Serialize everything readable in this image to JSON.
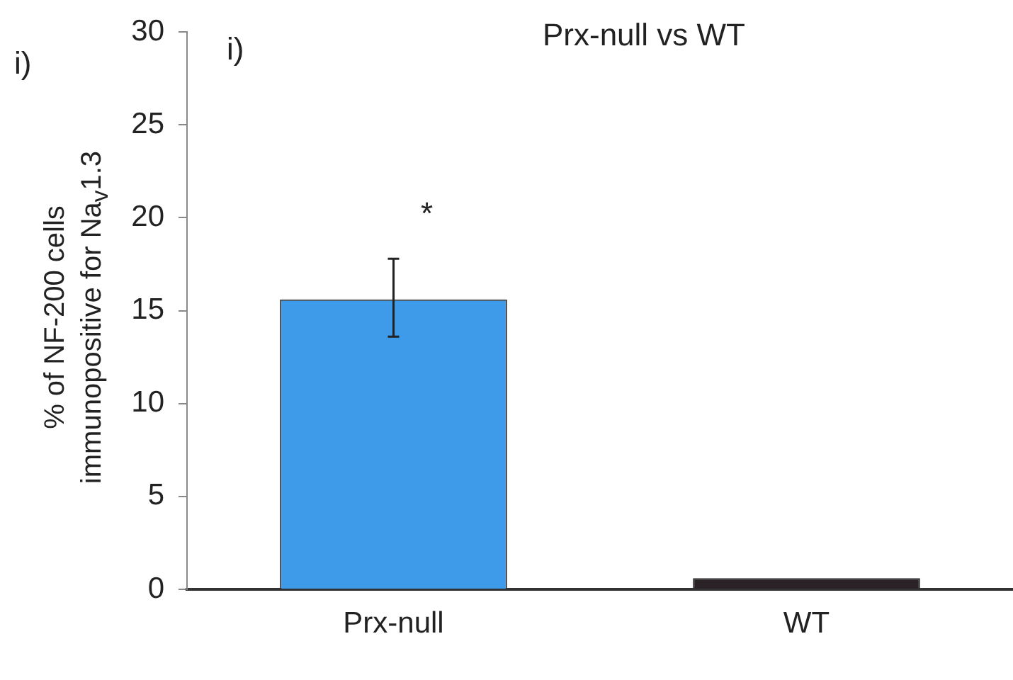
{
  "chart_data": {
    "type": "bar",
    "title": "Prx-null vs WT",
    "ylabel": "% of NF-200 cells immunopositive for Na$_{v}$1.3",
    "categories": [
      "Prx-null",
      "WT"
    ],
    "values": [
      15.6,
      0.6
    ],
    "colors": [
      "#3d9be9",
      "#2a2226"
    ],
    "errors": [
      [
        13.6,
        17.8
      ],
      null
    ],
    "ylim": [
      0,
      30
    ],
    "yticks": [
      0,
      5,
      10,
      15,
      20,
      25,
      30
    ],
    "grid": false,
    "legend": false,
    "annotations": [
      "i)",
      "i)",
      "*"
    ]
  }
}
